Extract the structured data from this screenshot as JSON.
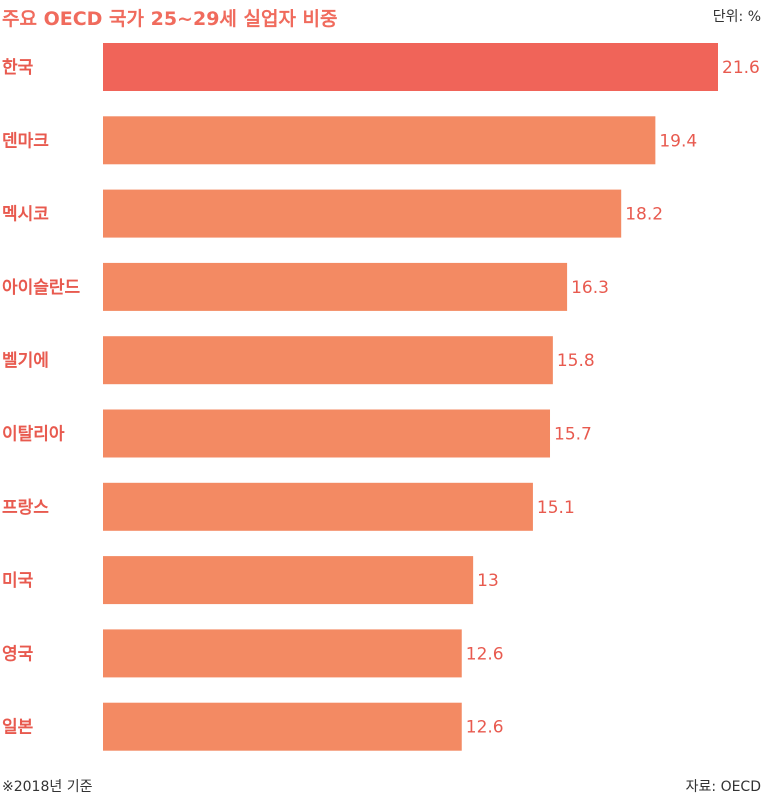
{
  "header": {
    "title": "주요 OECD 국가 25~29세 실업자 비중",
    "unit": "단위: %"
  },
  "footer": {
    "note": "※2018년 기준",
    "source": "자료: OECD"
  },
  "colors": {
    "highlight": "#f06459",
    "bar": "#f38a63",
    "label": "#e85a4f"
  },
  "chart_data": {
    "type": "bar",
    "orientation": "horizontal",
    "title": "주요 OECD 국가 25~29세 실업자 비중",
    "unit": "%",
    "categories": [
      "한국",
      "덴마크",
      "멕시코",
      "아이슬란드",
      "벨기에",
      "이탈리아",
      "프랑스",
      "미국",
      "영국",
      "일본"
    ],
    "values": [
      21.6,
      19.4,
      18.2,
      16.3,
      15.8,
      15.7,
      15.1,
      13,
      12.6,
      12.6
    ],
    "value_labels": [
      "21.6",
      "19.4",
      "18.2",
      "16.3",
      "15.8",
      "15.7",
      "15.1",
      "13",
      "12.6",
      "12.6"
    ],
    "highlight_index": 0,
    "xlim": [
      0,
      21.6
    ],
    "grid": false,
    "legend": "none"
  }
}
